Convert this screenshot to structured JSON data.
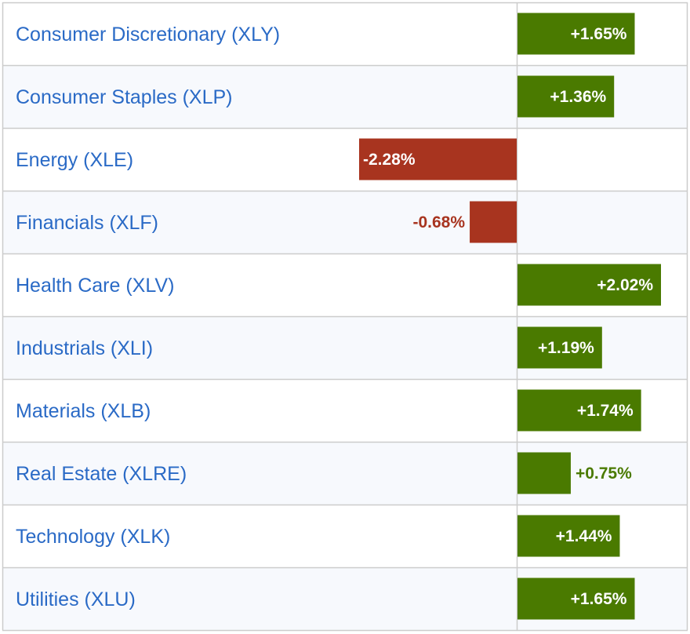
{
  "chart_data": {
    "type": "bar",
    "orientation": "horizontal",
    "categories": [
      "Consumer Discretionary (XLY)",
      "Consumer Staples (XLP)",
      "Energy (XLE)",
      "Financials (XLF)",
      "Health Care (XLV)",
      "Industrials (XLI)",
      "Materials (XLB)",
      "Real Estate (XLRE)",
      "Technology (XLK)",
      "Utilities (XLU)"
    ],
    "values": [
      1.65,
      1.36,
      -2.28,
      -0.68,
      2.02,
      1.19,
      1.74,
      0.75,
      1.44,
      1.65
    ],
    "value_labels": [
      "+1.65%",
      "+1.36%",
      "-2.28%",
      "-0.68%",
      "+2.02%",
      "+1.19%",
      "+1.74%",
      "+0.75%",
      "+1.44%",
      "+1.65%"
    ],
    "xlim": [
      -2.28,
      2.02
    ],
    "unit": "%",
    "colors": {
      "positive": "#4a7a00",
      "negative": "#a8341f",
      "label_text": "#2a6ac6",
      "inside_label": "#ffffff",
      "grid": "#cccccc"
    }
  }
}
